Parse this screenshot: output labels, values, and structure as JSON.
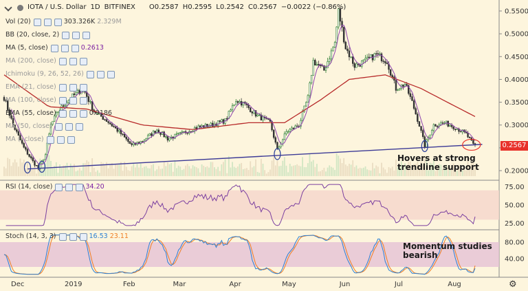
{
  "header": {
    "symbol": "IOTA / U.S. Dollar",
    "interval": "1D",
    "exchange": "BITFINEX",
    "open": "O0.2587",
    "high": "H0.2595",
    "low": "L0.2542",
    "close": "C0.2567",
    "change": "−0.0022 (−0.86%)"
  },
  "indicators": [
    {
      "label": "Vol (20)",
      "value": "303.326K",
      "value2": "2.329M",
      "value_color": "#333333",
      "muted": false
    },
    {
      "label": "BB (20, close, 2)",
      "value": "",
      "muted": false
    },
    {
      "label": "MA (5, close)",
      "value": "0.2613",
      "value_color": "#7b1fa2",
      "muted": false
    },
    {
      "label": "MA (200, close)",
      "value": "",
      "muted": true
    },
    {
      "label": "Ichimoku (9, 26, 52, 26)",
      "value": "",
      "muted": true
    },
    {
      "label": "EMA (21, close)",
      "value": "",
      "muted": true
    },
    {
      "label": "MA (100, close)",
      "value": "",
      "muted": true
    },
    {
      "label": "EMA (55, close)",
      "value": "0.3186",
      "value_color": "#333333",
      "muted": false
    },
    {
      "label": "MA (50, close)",
      "value": "",
      "muted": true
    },
    {
      "label": "MA (, close)",
      "value": "",
      "muted": true
    }
  ],
  "rsi": {
    "label": "RSI (14, close)",
    "value": "34.20",
    "value_color": "#7b1fa2"
  },
  "stoch": {
    "label": "Stoch (14, 3, 3)",
    "k_value": "16.53",
    "d_value": "23.11",
    "k_color": "#2a7fd4",
    "d_color": "#ef7d22"
  },
  "annotations": {
    "support_note_line1": "Hovers at strong",
    "support_note_line2": "trendline support",
    "momentum_note_line1": "Momentum studies",
    "momentum_note_line2": "bearish"
  },
  "last_price_label": "0.2567",
  "colors": {
    "background": "#fdf5dd",
    "up": "#2e7d32",
    "down": "#333333",
    "ema55": "#b72929",
    "ma5": "#8e44ad",
    "trendline": "#3c3a96",
    "last_price": "#e8322b",
    "rsi_band": "#f5d6cc",
    "stoch_band": "#e5c2d6"
  },
  "chart_data": {
    "type": "candlestick",
    "title": "IOTA / U.S. Dollar, 1D, BITFINEX",
    "x_months": [
      "Dec",
      "2019",
      "Feb",
      "Mar",
      "Apr",
      "May",
      "Jun",
      "Jul",
      "Aug"
    ],
    "y_ticks": [
      0.2,
      0.25,
      0.3,
      0.35,
      0.4,
      0.45,
      0.5,
      0.55
    ],
    "ylim": [
      0.188,
      0.559
    ],
    "price_path": [
      {
        "date": "2018-11-25",
        "close": 0.36
      },
      {
        "date": "2018-11-30",
        "close": 0.3
      },
      {
        "date": "2018-12-06",
        "close": 0.25
      },
      {
        "date": "2018-12-11",
        "close": 0.22
      },
      {
        "date": "2018-12-14",
        "close": 0.205
      },
      {
        "date": "2018-12-18",
        "close": 0.235
      },
      {
        "date": "2018-12-21",
        "close": 0.3
      },
      {
        "date": "2018-12-25",
        "close": 0.33
      },
      {
        "date": "2019-01-01",
        "close": 0.36
      },
      {
        "date": "2019-01-08",
        "close": 0.38
      },
      {
        "date": "2019-01-14",
        "close": 0.33
      },
      {
        "date": "2019-01-21",
        "close": 0.31
      },
      {
        "date": "2019-01-28",
        "close": 0.285
      },
      {
        "date": "2019-02-04",
        "close": 0.255
      },
      {
        "date": "2019-02-10",
        "close": 0.265
      },
      {
        "date": "2019-02-18",
        "close": 0.29
      },
      {
        "date": "2019-02-24",
        "close": 0.27
      },
      {
        "date": "2019-03-03",
        "close": 0.28
      },
      {
        "date": "2019-03-12",
        "close": 0.295
      },
      {
        "date": "2019-03-20",
        "close": 0.3
      },
      {
        "date": "2019-03-28",
        "close": 0.31
      },
      {
        "date": "2019-04-03",
        "close": 0.355
      },
      {
        "date": "2019-04-08",
        "close": 0.345
      },
      {
        "date": "2019-04-15",
        "close": 0.32
      },
      {
        "date": "2019-04-22",
        "close": 0.305
      },
      {
        "date": "2019-04-26",
        "close": 0.245
      },
      {
        "date": "2019-05-01",
        "close": 0.285
      },
      {
        "date": "2019-05-08",
        "close": 0.3
      },
      {
        "date": "2019-05-13",
        "close": 0.36
      },
      {
        "date": "2019-05-16",
        "close": 0.44
      },
      {
        "date": "2019-05-22",
        "close": 0.42
      },
      {
        "date": "2019-05-28",
        "close": 0.48
      },
      {
        "date": "2019-05-30",
        "close": 0.55
      },
      {
        "date": "2019-06-03",
        "close": 0.47
      },
      {
        "date": "2019-06-08",
        "close": 0.43
      },
      {
        "date": "2019-06-14",
        "close": 0.44
      },
      {
        "date": "2019-06-20",
        "close": 0.455
      },
      {
        "date": "2019-06-26",
        "close": 0.44
      },
      {
        "date": "2019-07-01",
        "close": 0.38
      },
      {
        "date": "2019-07-06",
        "close": 0.39
      },
      {
        "date": "2019-07-10",
        "close": 0.35
      },
      {
        "date": "2019-07-14",
        "close": 0.3
      },
      {
        "date": "2019-07-17",
        "close": 0.255
      },
      {
        "date": "2019-07-22",
        "close": 0.3
      },
      {
        "date": "2019-07-28",
        "close": 0.305
      },
      {
        "date": "2019-08-03",
        "close": 0.295
      },
      {
        "date": "2019-08-09",
        "close": 0.28
      },
      {
        "date": "2019-08-13",
        "close": 0.2567
      }
    ],
    "ema55": [
      {
        "date": "2018-11-25",
        "value": 0.41
      },
      {
        "date": "2018-12-20",
        "value": 0.34
      },
      {
        "date": "2019-01-10",
        "value": 0.335
      },
      {
        "date": "2019-02-10",
        "value": 0.3
      },
      {
        "date": "2019-03-10",
        "value": 0.29
      },
      {
        "date": "2019-04-10",
        "value": 0.305
      },
      {
        "date": "2019-04-30",
        "value": 0.305
      },
      {
        "date": "2019-05-20",
        "value": 0.355
      },
      {
        "date": "2019-06-05",
        "value": 0.4
      },
      {
        "date": "2019-06-25",
        "value": 0.41
      },
      {
        "date": "2019-07-15",
        "value": 0.38
      },
      {
        "date": "2019-08-01",
        "value": 0.345
      },
      {
        "date": "2019-08-14",
        "value": 0.3186
      }
    ],
    "trendline": {
      "start": {
        "date": "2018-12-14",
        "value": 0.205
      },
      "end": {
        "date": "2019-08-14",
        "value": 0.2567
      }
    },
    "rsi": {
      "ylim": [
        20,
        80
      ],
      "ticks": [
        25,
        50,
        75
      ],
      "band": [
        30,
        70
      ],
      "last": 34.2
    },
    "stoch": {
      "ylim": [
        0,
        100
      ],
      "ticks": [
        40,
        80
      ],
      "band": [
        20,
        80
      ],
      "k_last": 16.53,
      "d_last": 23.11
    }
  }
}
